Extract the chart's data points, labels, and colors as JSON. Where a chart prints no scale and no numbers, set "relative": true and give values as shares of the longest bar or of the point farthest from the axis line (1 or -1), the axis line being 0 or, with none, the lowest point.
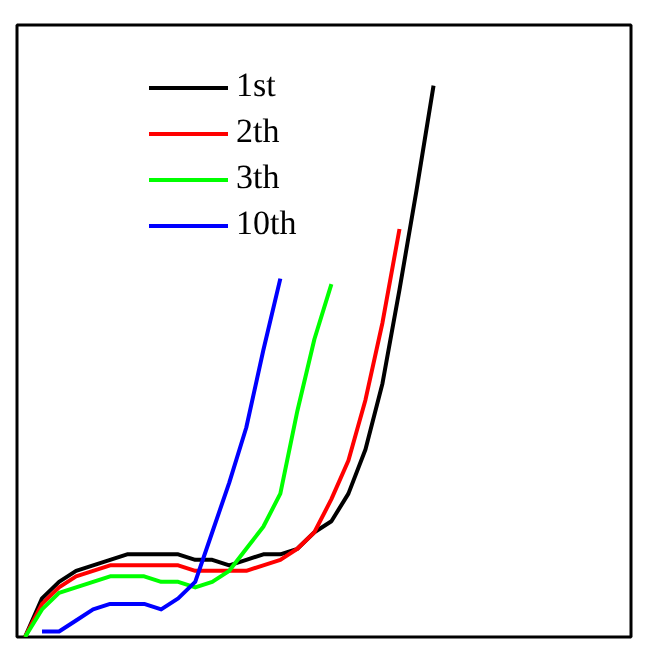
{
  "chart_data": {
    "type": "line",
    "relative": true,
    "legend": "top left",
    "grid": false,
    "categories": [
      null,
      null,
      null,
      null,
      null,
      null,
      null,
      null,
      null,
      null,
      null,
      null,
      null,
      null,
      null,
      null,
      null,
      null,
      null,
      null,
      null,
      null,
      null,
      null,
      null,
      null,
      null,
      null,
      null,
      null,
      null,
      null,
      null,
      null,
      null,
      null
    ],
    "series": [
      {
        "name": "1st",
        "color": "#000000",
        "values": [
          0,
          0.07,
          0.1,
          0.12,
          0.13,
          0.14,
          0.15,
          0.15,
          0.15,
          0.15,
          0.14,
          0.14,
          0.13,
          0.14,
          0.15,
          0.15,
          0.16,
          0.19,
          0.21,
          0.26,
          0.34,
          0.46,
          0.63,
          0.81,
          1.0,
          null,
          null,
          null,
          null,
          null,
          null,
          null,
          null,
          null,
          null,
          null
        ]
      },
      {
        "name": "2th",
        "color": "#ff0000",
        "values": [
          0,
          0.06,
          0.09,
          0.11,
          0.12,
          0.13,
          0.13,
          0.13,
          0.13,
          0.13,
          0.12,
          0.12,
          0.12,
          0.12,
          0.13,
          0.14,
          0.16,
          0.19,
          0.25,
          0.32,
          0.43,
          0.57,
          0.74,
          null,
          null,
          null,
          null,
          null,
          null,
          null,
          null,
          null,
          null,
          null,
          null,
          null
        ]
      },
      {
        "name": "3th",
        "color": "#00ff00",
        "values": [
          0,
          0.05,
          0.08,
          0.09,
          0.1,
          0.11,
          0.11,
          0.11,
          0.1,
          0.1,
          0.09,
          0.1,
          0.12,
          0.16,
          0.2,
          0.26,
          0.41,
          0.54,
          0.64,
          null,
          null,
          null,
          null,
          null,
          null,
          null,
          null,
          null,
          null,
          null,
          null,
          null,
          null,
          null,
          null,
          null
        ]
      },
      {
        "name": "10th",
        "color": "#0000ff",
        "values": [
          null,
          0.01,
          0.01,
          0.03,
          0.05,
          0.06,
          0.06,
          0.06,
          0.05,
          0.07,
          0.1,
          0.19,
          0.28,
          0.38,
          0.52,
          0.65,
          null,
          null,
          null,
          null,
          null,
          null,
          null,
          null,
          null,
          null,
          null,
          null,
          null,
          null,
          null,
          null,
          null,
          null,
          null,
          null
        ]
      }
    ]
  }
}
